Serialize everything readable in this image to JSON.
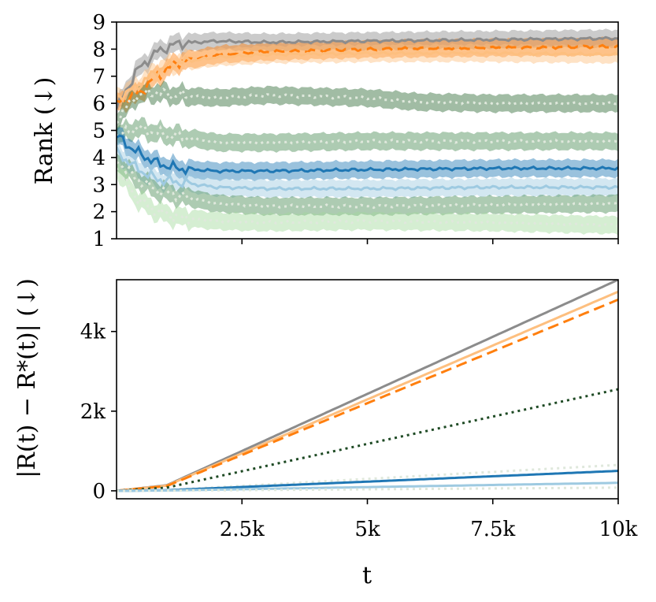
{
  "chart_data": [
    {
      "type": "line",
      "ylabel": "Rank (↓)",
      "xlabel": "",
      "xlim": [
        0,
        10000
      ],
      "ylim": [
        1,
        9
      ],
      "yticks": [
        1,
        2,
        3,
        4,
        5,
        6,
        7,
        8,
        9
      ],
      "ytick_labels": [
        "1",
        "2",
        "3",
        "4",
        "5",
        "6",
        "7",
        "8",
        "9"
      ],
      "xticks": [
        2500,
        5000,
        7500,
        10000
      ],
      "colors": {
        "gray": "#8c8c8c",
        "orange": "#ff7f0e",
        "orange_light": "#fdbf7f",
        "dark_green": "#2e6b35",
        "mid_green": "#4a8c55",
        "light_green": "#a1d99b",
        "blue": "#1f77b4",
        "light_blue": "#9ecae1"
      },
      "series": [
        {
          "name": "gray",
          "color": "#8c8c8c",
          "dash": "solid",
          "x": [
            0,
            400,
            800,
            1200,
            2000,
            3000,
            5000,
            7500,
            10000
          ],
          "y": [
            5.8,
            7.2,
            7.9,
            8.2,
            8.3,
            8.25,
            8.3,
            8.35,
            8.4
          ]
        },
        {
          "name": "orange-dashed",
          "color": "#ff7f0e",
          "dash": "dashed",
          "x": [
            0,
            400,
            800,
            1200,
            2000,
            3000,
            5000,
            7500,
            10000
          ],
          "y": [
            6.0,
            6.3,
            7.0,
            7.5,
            7.8,
            7.9,
            8.0,
            8.05,
            8.1
          ]
        },
        {
          "name": "orange-light",
          "color": "#fdbf7f",
          "dash": "solid",
          "x": [
            0,
            400,
            800,
            1200,
            2000,
            3000,
            5000,
            7500,
            10000
          ],
          "y": [
            6.2,
            6.6,
            7.2,
            7.5,
            7.7,
            7.8,
            7.85,
            7.85,
            7.8
          ]
        },
        {
          "name": "dark-green",
          "color": "#2e6b35",
          "dash": "dotted",
          "x": [
            0,
            400,
            800,
            1200,
            2000,
            3000,
            5000,
            6000,
            7500,
            10000
          ],
          "y": [
            5.4,
            6.3,
            6.4,
            6.3,
            6.2,
            6.3,
            6.2,
            6.05,
            6.0,
            6.0
          ]
        },
        {
          "name": "mid-green",
          "color": "#4a8c55",
          "dash": "dotted",
          "x": [
            0,
            400,
            800,
            1200,
            2000,
            3000,
            5000,
            7500,
            10000
          ],
          "y": [
            4.8,
            5.1,
            4.9,
            4.8,
            4.55,
            4.55,
            4.6,
            4.6,
            4.6
          ]
        },
        {
          "name": "blue",
          "color": "#1f77b4",
          "dash": "solid",
          "x": [
            0,
            400,
            800,
            1200,
            2000,
            3000,
            5000,
            7500,
            10000
          ],
          "y": [
            4.8,
            4.2,
            3.8,
            3.6,
            3.5,
            3.5,
            3.55,
            3.6,
            3.6
          ]
        },
        {
          "name": "light-blue",
          "color": "#9ecae1",
          "dash": "solid",
          "x": [
            0,
            400,
            800,
            1200,
            2000,
            3000,
            5000,
            7500,
            10000
          ],
          "y": [
            4.2,
            3.6,
            3.2,
            3.1,
            2.9,
            2.85,
            2.85,
            2.9,
            2.9
          ]
        },
        {
          "name": "green-dotted",
          "color": "#4a8c55",
          "dash": "dotted",
          "x": [
            0,
            400,
            800,
            1200,
            2000,
            3000,
            5000,
            7500,
            10000
          ],
          "y": [
            3.9,
            3.2,
            2.8,
            2.6,
            2.3,
            2.2,
            2.2,
            2.25,
            2.3
          ]
        },
        {
          "name": "light-green",
          "color": "#a1d99b",
          "dash": "dotted",
          "x": [
            0,
            400,
            800,
            1200,
            2000,
            3000,
            5000,
            7500,
            10000
          ],
          "y": [
            3.6,
            2.5,
            2.0,
            1.8,
            1.65,
            1.6,
            1.65,
            1.6,
            1.5
          ]
        }
      ]
    },
    {
      "type": "line",
      "ylabel": "|R(t) − R*(t)| (↓)",
      "xlabel": "t",
      "xlim": [
        0,
        10000
      ],
      "ylim": [
        -200,
        5300
      ],
      "yticks": [
        0,
        2000,
        4000
      ],
      "ytick_labels": [
        "0",
        "2k",
        "4k"
      ],
      "xticks": [
        2500,
        5000,
        7500,
        10000
      ],
      "xtick_labels": [
        "2.5k",
        "5k",
        "7.5k",
        "10k"
      ],
      "series": [
        {
          "name": "gray",
          "color": "#8c8c8c",
          "dash": "solid",
          "x": [
            0,
            1000,
            10000
          ],
          "y": [
            0,
            140,
            5300
          ]
        },
        {
          "name": "orange-light",
          "color": "#fdbf7f",
          "dash": "solid",
          "x": [
            0,
            1000,
            10000
          ],
          "y": [
            0,
            130,
            5000
          ]
        },
        {
          "name": "orange-dashed",
          "color": "#ff7f0e",
          "dash": "dashed",
          "x": [
            0,
            1000,
            10000
          ],
          "y": [
            0,
            120,
            4800
          ]
        },
        {
          "name": "dark-green",
          "color": "#2e6b35",
          "dash": "dotted",
          "x": [
            0,
            1000,
            10000
          ],
          "y": [
            0,
            80,
            2550
          ]
        },
        {
          "name": "mid-green",
          "color": "#4a8c55",
          "dash": "dotted",
          "x": [
            0,
            1000,
            10000
          ],
          "y": [
            0,
            20,
            650
          ]
        },
        {
          "name": "blue",
          "color": "#1f77b4",
          "dash": "solid",
          "x": [
            0,
            1000,
            10000
          ],
          "y": [
            0,
            15,
            500
          ]
        },
        {
          "name": "light-blue",
          "color": "#9ecae1",
          "dash": "solid",
          "x": [
            0,
            1000,
            10000
          ],
          "y": [
            0,
            8,
            200
          ]
        },
        {
          "name": "light-green",
          "color": "#a1d99b",
          "dash": "dotted",
          "x": [
            0,
            1000,
            10000
          ],
          "y": [
            0,
            4,
            80
          ]
        }
      ]
    }
  ]
}
